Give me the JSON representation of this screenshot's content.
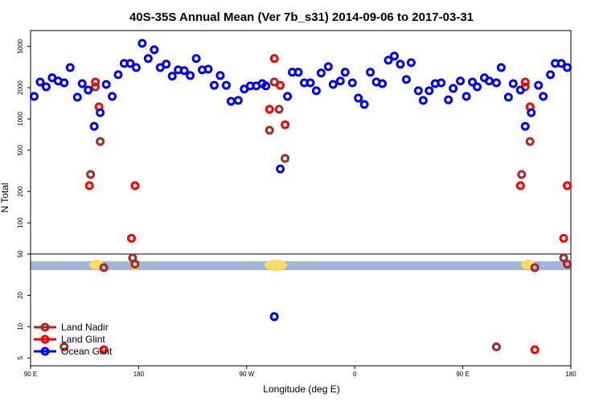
{
  "chart_data": {
    "type": "scatter",
    "title": "40S-35S Annual Mean (Ver 7b_s31)   2014-09-06 to 2017-03-31",
    "x_label": "Longitude (deg E)",
    "y_label": "N Total",
    "y_scale": "log",
    "xlim": [
      90,
      540
    ],
    "ylim": [
      4.2,
      7100
    ],
    "xticks": [
      {
        "value": 90,
        "label": "90 E"
      },
      {
        "value": 180,
        "label": "180"
      },
      {
        "value": 270,
        "label": "90 W"
      },
      {
        "value": 360,
        "label": "0"
      },
      {
        "value": 450,
        "label": "90 E"
      },
      {
        "value": 540,
        "label": "180"
      }
    ],
    "yticks": [
      5,
      10,
      20,
      50,
      100,
      200,
      500,
      1000,
      2000,
      5000
    ],
    "legend_position": "lower left",
    "series": [
      {
        "name": "Land Nadir",
        "color": "#a52a2a",
        "x": [
          118,
          140,
          144,
          148,
          151,
          175,
          177,
          289,
          293,
          297,
          302,
          478,
          499,
          502,
          506,
          510,
          534,
          537
        ],
        "values": [
          6.4,
          292,
          2040,
          607,
          37,
          46,
          40,
          779,
          2270,
          1240,
          417,
          6.4,
          292,
          2040,
          607,
          37,
          46,
          40
        ]
      },
      {
        "name": "Land Glint",
        "color": "#ff0000",
        "x": [
          139,
          144,
          147,
          151,
          174,
          177,
          289,
          293,
          298,
          302,
          498,
          502,
          506,
          510,
          534,
          537
        ],
        "values": [
          228,
          2270,
          1310,
          6,
          71,
          228,
          1240,
          3820,
          2110,
          880,
          228,
          2270,
          1310,
          6,
          71,
          228
        ]
      },
      {
        "name": "Ocean Glint",
        "color": "#0000ff",
        "x": [
          93,
          98,
          103,
          108,
          113,
          118,
          123,
          129,
          133,
          138,
          143,
          148,
          153,
          158,
          163,
          168,
          173,
          178,
          183,
          188,
          193,
          198,
          203,
          208,
          213,
          218,
          223,
          228,
          233,
          238,
          243,
          248,
          253,
          257,
          263,
          268,
          273,
          278,
          283,
          286,
          293,
          298,
          304,
          308,
          313,
          318,
          323,
          328,
          332,
          338,
          342,
          348,
          352,
          358,
          363,
          368,
          373,
          378,
          383,
          388,
          393,
          398,
          403,
          407,
          413,
          417,
          422,
          427,
          432,
          438,
          442,
          448,
          453,
          458,
          462,
          468,
          472,
          478,
          482,
          488,
          492,
          498,
          502,
          507,
          513,
          517,
          523,
          527,
          532,
          537
        ],
        "values": [
          1650,
          2270,
          2040,
          2490,
          2320,
          2230,
          3130,
          1620,
          2190,
          1900,
          850,
          1150,
          2150,
          1650,
          2670,
          3430,
          3430,
          3130,
          5350,
          3820,
          4640,
          3130,
          3370,
          2580,
          2970,
          2920,
          2620,
          3820,
          2970,
          3020,
          2110,
          2620,
          2110,
          1480,
          1510,
          1940,
          2080,
          2080,
          2190,
          2080,
          12.5,
          330,
          1650,
          2820,
          2820,
          2230,
          2230,
          1870,
          2770,
          3190,
          2150,
          2320,
          2820,
          2230,
          1590,
          1380,
          2820,
          2270,
          2190,
          3680,
          4030,
          3370,
          2400,
          3490,
          1870,
          1510,
          1870,
          2190,
          2230,
          1530,
          1970,
          2320,
          1650,
          2270,
          2040,
          2490,
          2320,
          2230,
          3130,
          1620,
          2190,
          1900,
          850,
          1150,
          2110,
          1650,
          2670,
          3430,
          3430,
          3130
        ]
      }
    ]
  }
}
